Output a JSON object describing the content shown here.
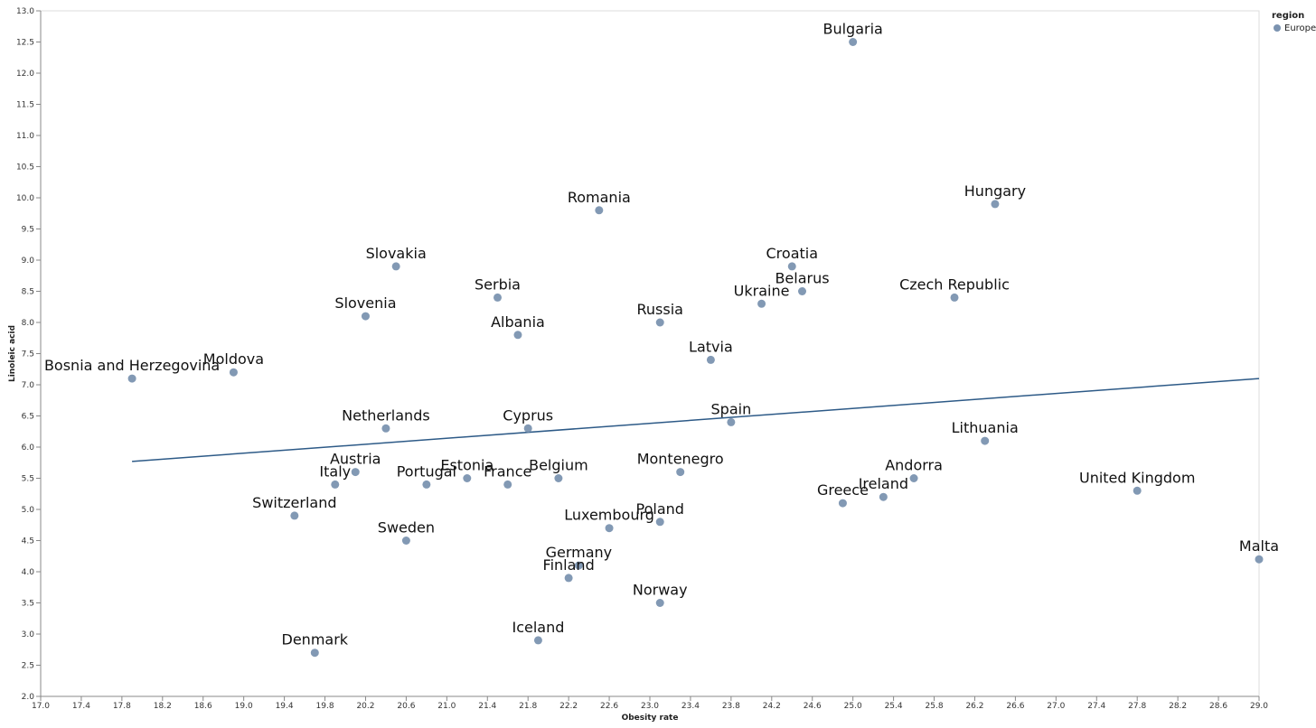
{
  "chart_data": {
    "type": "scatter",
    "xlabel": "Obesity rate",
    "ylabel": "Linoleic acid",
    "xlim": [
      17.0,
      29.0
    ],
    "ylim": [
      2.0,
      13.0
    ],
    "x_ticks": [
      "17.0",
      "17.4",
      "17.8",
      "18.2",
      "18.6",
      "19.0",
      "19.4",
      "19.8",
      "20.2",
      "20.6",
      "21.0",
      "21.4",
      "21.8",
      "22.2",
      "22.6",
      "23.0",
      "23.4",
      "23.8",
      "24.2",
      "24.6",
      "25.0",
      "25.4",
      "25.8",
      "26.2",
      "26.6",
      "27.0",
      "27.4",
      "27.8",
      "28.2",
      "28.6",
      "29.0"
    ],
    "y_ticks": [
      "2.0",
      "2.5",
      "3.0",
      "3.5",
      "4.0",
      "4.5",
      "5.0",
      "5.5",
      "6.0",
      "6.5",
      "7.0",
      "7.5",
      "8.0",
      "8.5",
      "9.0",
      "9.5",
      "10.0",
      "10.5",
      "11.0",
      "11.5",
      "12.0",
      "12.5",
      "13.0"
    ],
    "grid": false,
    "legend": {
      "title": "region",
      "position": "top-right",
      "entries": [
        {
          "label": "Europe",
          "color": "#7b93b0"
        }
      ]
    },
    "point_color": "#7b93b0",
    "line_color": "#2d5a87",
    "trend_line": {
      "x": [
        17.9,
        29.0
      ],
      "y": [
        5.77,
        7.1
      ]
    },
    "points": [
      {
        "label": "Bosnia and Herzegovina",
        "x": 17.9,
        "y": 7.1
      },
      {
        "label": "Moldova",
        "x": 18.9,
        "y": 7.2
      },
      {
        "label": "Switzerland",
        "x": 19.5,
        "y": 4.9
      },
      {
        "label": "Denmark",
        "x": 19.7,
        "y": 2.7
      },
      {
        "label": "Italy",
        "x": 19.9,
        "y": 5.4
      },
      {
        "label": "Austria",
        "x": 20.1,
        "y": 5.6
      },
      {
        "label": "Slovenia",
        "x": 20.2,
        "y": 8.1
      },
      {
        "label": "Netherlands",
        "x": 20.4,
        "y": 6.3
      },
      {
        "label": "Slovakia",
        "x": 20.5,
        "y": 8.9
      },
      {
        "label": "Sweden",
        "x": 20.6,
        "y": 4.5
      },
      {
        "label": "Portugal",
        "x": 20.8,
        "y": 5.4
      },
      {
        "label": "Estonia",
        "x": 21.2,
        "y": 5.5
      },
      {
        "label": "Serbia",
        "x": 21.5,
        "y": 8.4
      },
      {
        "label": "France",
        "x": 21.6,
        "y": 5.4
      },
      {
        "label": "Albania",
        "x": 21.7,
        "y": 7.8
      },
      {
        "label": "Cyprus",
        "x": 21.8,
        "y": 6.3
      },
      {
        "label": "Iceland",
        "x": 21.9,
        "y": 2.9
      },
      {
        "label": "Belgium",
        "x": 22.1,
        "y": 5.5
      },
      {
        "label": "Finland",
        "x": 22.2,
        "y": 3.9
      },
      {
        "label": "Germany",
        "x": 22.3,
        "y": 4.1
      },
      {
        "label": "Romania",
        "x": 22.5,
        "y": 9.8
      },
      {
        "label": "Luxembourg",
        "x": 22.6,
        "y": 4.7
      },
      {
        "label": "Russia",
        "x": 23.1,
        "y": 8.0
      },
      {
        "label": "Poland",
        "x": 23.1,
        "y": 4.8
      },
      {
        "label": "Norway",
        "x": 23.1,
        "y": 3.5
      },
      {
        "label": "Montenegro",
        "x": 23.3,
        "y": 5.6
      },
      {
        "label": "Latvia",
        "x": 23.6,
        "y": 7.4
      },
      {
        "label": "Spain",
        "x": 23.8,
        "y": 6.4
      },
      {
        "label": "Ukraine",
        "x": 24.1,
        "y": 8.3
      },
      {
        "label": "Croatia",
        "x": 24.4,
        "y": 8.9
      },
      {
        "label": "Belarus",
        "x": 24.5,
        "y": 8.5
      },
      {
        "label": "Greece",
        "x": 24.9,
        "y": 5.1
      },
      {
        "label": "Bulgaria",
        "x": 25.0,
        "y": 12.5
      },
      {
        "label": "Ireland",
        "x": 25.3,
        "y": 5.2
      },
      {
        "label": "Andorra",
        "x": 25.6,
        "y": 5.5
      },
      {
        "label": "Czech Republic",
        "x": 26.0,
        "y": 8.4
      },
      {
        "label": "Lithuania",
        "x": 26.3,
        "y": 6.1
      },
      {
        "label": "Hungary",
        "x": 26.4,
        "y": 9.9
      },
      {
        "label": "United Kingdom",
        "x": 27.8,
        "y": 5.3
      },
      {
        "label": "Malta",
        "x": 29.0,
        "y": 4.2
      }
    ]
  }
}
